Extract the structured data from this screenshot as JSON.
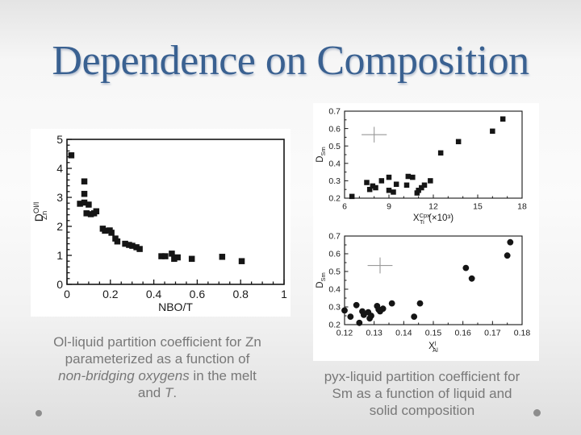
{
  "title": "Dependence on Composition",
  "colors": {
    "title": "#3a6191",
    "caption": "#787878",
    "marker": "#151515",
    "frame": "#151515",
    "cross": "#999999",
    "panel": "#ffffff",
    "dot": "#8d8d8d"
  },
  "captions": {
    "left": {
      "lines": [
        [
          {
            "t": "Ol-liquid partition coefficient for Zn"
          }
        ],
        [
          {
            "t": "parameterized as a function of"
          }
        ],
        [
          {
            "t": "non-bridging oxygens",
            "i": true
          },
          {
            "t": " in the melt"
          }
        ],
        [
          {
            "t": "and "
          },
          {
            "t": "T",
            "i": true
          },
          {
            "t": "."
          }
        ]
      ]
    },
    "right": {
      "lines": [
        [
          {
            "t": "pyx-liquid partition coefficient for"
          }
        ],
        [
          {
            "t": "Sm as a function of liquid and"
          }
        ],
        [
          {
            "t": "solid composition"
          }
        ]
      ]
    }
  },
  "chart_data": [
    {
      "id": "zn",
      "type": "scatter",
      "marker": "square",
      "title": "",
      "xlabel": {
        "base": "NBO/T"
      },
      "ylabel": {
        "base": "D",
        "sup": "Ol/l",
        "sub": "Zn"
      },
      "xlim": [
        0,
        1
      ],
      "ylim": [
        0,
        5
      ],
      "xticks": [
        0,
        0.2,
        0.4,
        0.6,
        0.8,
        1
      ],
      "xtick_labels": [
        "0",
        "0.2",
        "0.4",
        "0.6",
        "0.8",
        "1"
      ],
      "yticks": [
        0,
        1,
        2,
        3,
        4,
        5
      ],
      "ytick_labels": [
        "0",
        "1",
        "2",
        "3",
        "4",
        "5"
      ],
      "x_minor": 0.05,
      "y_minor": 0.2,
      "grid": false,
      "points": [
        [
          0.02,
          4.45
        ],
        [
          0.08,
          3.55
        ],
        [
          0.08,
          3.12
        ],
        [
          0.06,
          2.78
        ],
        [
          0.08,
          2.82
        ],
        [
          0.1,
          2.75
        ],
        [
          0.09,
          2.45
        ],
        [
          0.11,
          2.42
        ],
        [
          0.125,
          2.45
        ],
        [
          0.135,
          2.52
        ],
        [
          0.165,
          1.92
        ],
        [
          0.175,
          1.85
        ],
        [
          0.197,
          1.86
        ],
        [
          0.205,
          1.78
        ],
        [
          0.223,
          1.58
        ],
        [
          0.232,
          1.48
        ],
        [
          0.268,
          1.4
        ],
        [
          0.286,
          1.36
        ],
        [
          0.301,
          1.33
        ],
        [
          0.32,
          1.28
        ],
        [
          0.335,
          1.22
        ],
        [
          0.435,
          0.97
        ],
        [
          0.453,
          0.97
        ],
        [
          0.483,
          1.06
        ],
        [
          0.494,
          0.88
        ],
        [
          0.51,
          0.93
        ],
        [
          0.575,
          0.88
        ],
        [
          0.715,
          0.95
        ],
        [
          0.805,
          0.8
        ]
      ]
    },
    {
      "id": "ti",
      "type": "scatter",
      "marker": "square",
      "title": "",
      "xlabel": {
        "base": "X",
        "sup": "Cpx",
        "sub": "Ti",
        "suffix": " (×10³)"
      },
      "ylabel": {
        "base": "D",
        "sub": "Sm"
      },
      "xlim": [
        6,
        18
      ],
      "ylim": [
        0.2,
        0.7
      ],
      "xticks": [
        6,
        9,
        12,
        15,
        18
      ],
      "xtick_labels": [
        "6",
        "9",
        "12",
        "15",
        "18"
      ],
      "yticks": [
        0.2,
        0.3,
        0.4,
        0.5,
        0.6,
        0.7
      ],
      "ytick_labels": [
        "0.2",
        "0.3",
        "0.4",
        "0.5",
        "0.6",
        "0.7"
      ],
      "x_minor": 1,
      "y_minor": 0.05,
      "grid": false,
      "cross": {
        "x": 8.0,
        "y": 0.565,
        "dx": 0.85,
        "dy": 0.045
      },
      "points": [
        [
          6.5,
          0.21
        ],
        [
          7.5,
          0.29
        ],
        [
          7.7,
          0.25
        ],
        [
          7.9,
          0.27
        ],
        [
          8.1,
          0.26
        ],
        [
          8.5,
          0.3
        ],
        [
          9.0,
          0.32
        ],
        [
          9.0,
          0.245
        ],
        [
          9.3,
          0.235
        ],
        [
          9.5,
          0.28
        ],
        [
          10.2,
          0.275
        ],
        [
          10.3,
          0.325
        ],
        [
          10.6,
          0.32
        ],
        [
          10.9,
          0.23
        ],
        [
          11.0,
          0.245
        ],
        [
          11.2,
          0.26
        ],
        [
          11.4,
          0.275
        ],
        [
          11.8,
          0.3
        ],
        [
          12.5,
          0.46
        ],
        [
          13.7,
          0.525
        ],
        [
          16.0,
          0.585
        ],
        [
          16.7,
          0.655
        ]
      ]
    },
    {
      "id": "al",
      "type": "scatter",
      "marker": "circle",
      "title": "",
      "xlabel": {
        "base": "X",
        "sup": "l",
        "sub": "Al"
      },
      "ylabel": {
        "base": "D",
        "sub": "Sm"
      },
      "xlim": [
        0.12,
        0.18
      ],
      "ylim": [
        0.2,
        0.7
      ],
      "xticks": [
        0.12,
        0.13,
        0.14,
        0.15,
        0.16,
        0.17,
        0.18
      ],
      "xtick_labels": [
        "0.12",
        "0.13",
        "0.14",
        "0.15",
        "0.16",
        "0.17",
        "0.18"
      ],
      "yticks": [
        0.2,
        0.3,
        0.4,
        0.5,
        0.6,
        0.7
      ],
      "ytick_labels": [
        "0.2",
        "0.3",
        "0.4",
        "0.5",
        "0.6",
        "0.7"
      ],
      "x_minor": 0.005,
      "y_minor": 0.05,
      "grid": false,
      "cross": {
        "x": 0.132,
        "y": 0.534,
        "dx": 0.0042,
        "dy": 0.045
      },
      "points": [
        [
          0.12,
          0.28
        ],
        [
          0.122,
          0.245
        ],
        [
          0.124,
          0.31
        ],
        [
          0.125,
          0.21
        ],
        [
          0.126,
          0.275
        ],
        [
          0.1265,
          0.255
        ],
        [
          0.128,
          0.27
        ],
        [
          0.1285,
          0.235
        ],
        [
          0.129,
          0.25
        ],
        [
          0.131,
          0.305
        ],
        [
          0.1315,
          0.285
        ],
        [
          0.132,
          0.275
        ],
        [
          0.133,
          0.29
        ],
        [
          0.136,
          0.32
        ],
        [
          0.1435,
          0.245
        ],
        [
          0.1455,
          0.32
        ],
        [
          0.161,
          0.52
        ],
        [
          0.163,
          0.46
        ],
        [
          0.175,
          0.59
        ],
        [
          0.176,
          0.665
        ]
      ]
    }
  ]
}
